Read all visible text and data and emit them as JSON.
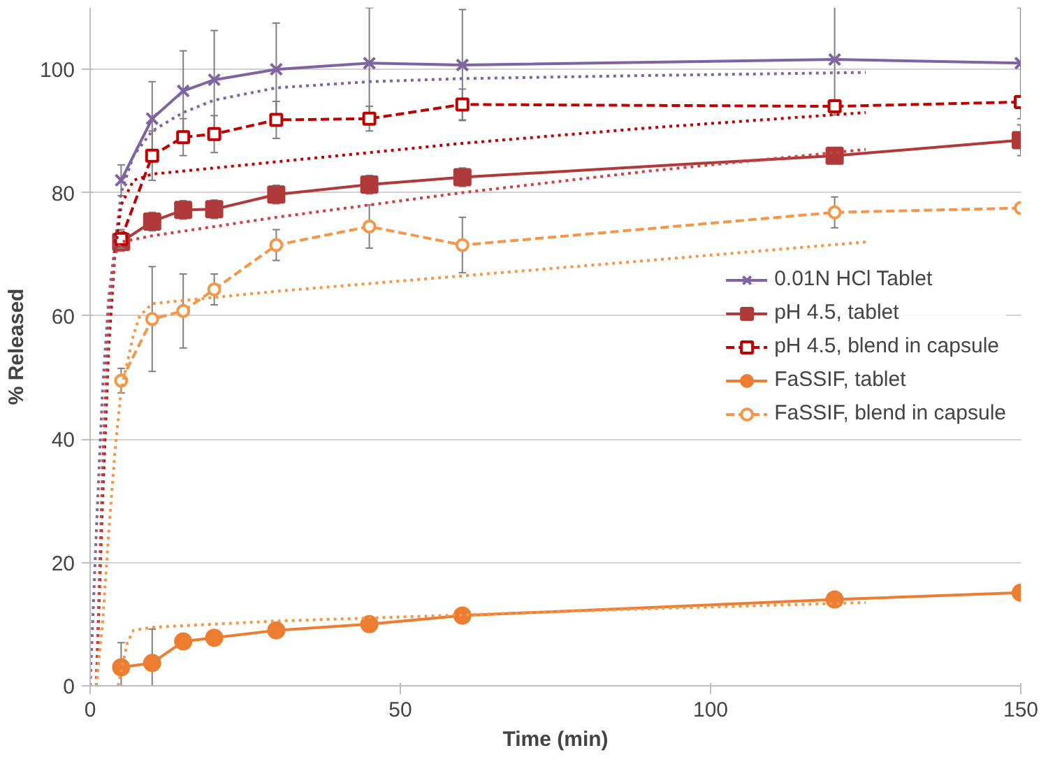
{
  "chart_data": {
    "type": "line",
    "xlabel": "Time (min)",
    "ylabel": "% Released",
    "xlim": [
      0,
      150
    ],
    "ylim": [
      0,
      110
    ],
    "xticks": [
      0,
      50,
      100,
      150
    ],
    "yticks": [
      0,
      20,
      40,
      60,
      80,
      100
    ],
    "grid": "y",
    "legend": "right",
    "series": [
      {
        "name": "0.01N HCl Tablet",
        "color": "#8064a2",
        "marker": "cross",
        "line_style": "solid",
        "x": [
          5,
          10,
          15,
          20,
          30,
          45,
          60,
          120,
          150
        ],
        "values": [
          82,
          92,
          96.5,
          98.3,
          100,
          101,
          100.7,
          101.6,
          101
        ],
        "errors": [
          2.5,
          6,
          6.5,
          8,
          7.5,
          9,
          9,
          9,
          9
        ]
      },
      {
        "name": "pH 4.5, tablet",
        "color": "#b03a3a",
        "marker": "square",
        "line_style": "solid",
        "x": [
          5,
          10,
          15,
          20,
          30,
          45,
          60,
          120,
          150
        ],
        "values": [
          72,
          75.3,
          77.2,
          77.3,
          79.7,
          81.3,
          82.5,
          86,
          88.5
        ],
        "errors": [
          1.5,
          1.5,
          1.5,
          1.5,
          1.5,
          1.5,
          1.5,
          null,
          2.5
        ]
      },
      {
        "name": "pH 4.5, blend in capsule",
        "color": "#c00000",
        "marker": "square",
        "line_style": "dashed",
        "x": [
          5,
          10,
          15,
          20,
          30,
          45,
          60,
          120,
          150
        ],
        "values": [
          72.5,
          86,
          89,
          89.5,
          91.8,
          92,
          94.3,
          94,
          94.7
        ],
        "errors": [
          1.5,
          4,
          3,
          3,
          3,
          2,
          2.5,
          1,
          1
        ]
      },
      {
        "name": "FaSSIF, tablet",
        "color": "#ed7d31",
        "marker": "circle",
        "line_style": "solid",
        "x": [
          5,
          10,
          15,
          20,
          30,
          45,
          60,
          120,
          150
        ],
        "values": [
          3,
          3.7,
          7.2,
          7.8,
          9,
          10,
          11.4,
          14,
          15.1
        ],
        "errors": [
          4,
          5.5,
          null,
          null,
          null,
          null,
          null,
          null,
          null
        ]
      },
      {
        "name": "FaSSIF, blend in capsule",
        "color": "#f79646",
        "marker": "circle",
        "line_style": "dashed",
        "x": [
          5,
          10,
          15,
          20,
          30,
          45,
          60,
          120,
          150
        ],
        "values": [
          49.5,
          59.5,
          60.8,
          64.3,
          71.5,
          74.5,
          71.5,
          76.8,
          77.5
        ],
        "errors": [
          2,
          8.5,
          6,
          2.5,
          2.5,
          3.5,
          4.5,
          2.5,
          null
        ]
      },
      {
        "color": "#8064a2",
        "marker": "none",
        "line_style": "dotted",
        "x": [
          0,
          1,
          2,
          3,
          5,
          7,
          10,
          15,
          20,
          30,
          45,
          60,
          90,
          125
        ],
        "values": [
          0,
          25,
          48,
          63,
          80,
          86,
          90,
          93,
          95,
          97,
          98,
          98.5,
          99,
          99.5
        ]
      },
      {
        "color": "#c00000",
        "marker": "none",
        "line_style": "dotted",
        "x": [
          1,
          2,
          3,
          4,
          5,
          7,
          10,
          20,
          30,
          60,
          90,
          125
        ],
        "values": [
          0,
          30,
          55,
          70,
          78,
          82,
          83,
          84,
          85,
          88,
          90.5,
          93
        ]
      },
      {
        "color": "#d04040",
        "marker": "none",
        "line_style": "dotted",
        "x": [
          1,
          2,
          3,
          4,
          5,
          10,
          30,
          60,
          90,
          125
        ],
        "values": [
          0,
          35,
          60,
          70,
          72,
          73,
          76,
          80,
          83.5,
          87
        ]
      },
      {
        "color": "#f79646",
        "marker": "none",
        "line_style": "dotted",
        "x": [
          1,
          2,
          3,
          4,
          5,
          7,
          8,
          10,
          20,
          30,
          60,
          90,
          125
        ],
        "values": [
          0,
          10,
          25,
          38,
          48,
          57,
          60,
          62,
          63,
          64,
          66.5,
          69,
          72
        ]
      },
      {
        "color": "#f79646",
        "marker": "none",
        "line_style": "dotted",
        "x": [
          4.5,
          6,
          7,
          10,
          30,
          60,
          90,
          125
        ],
        "values": [
          0,
          7,
          9,
          9.5,
          10.5,
          11.5,
          12.5,
          13.5
        ]
      }
    ]
  }
}
